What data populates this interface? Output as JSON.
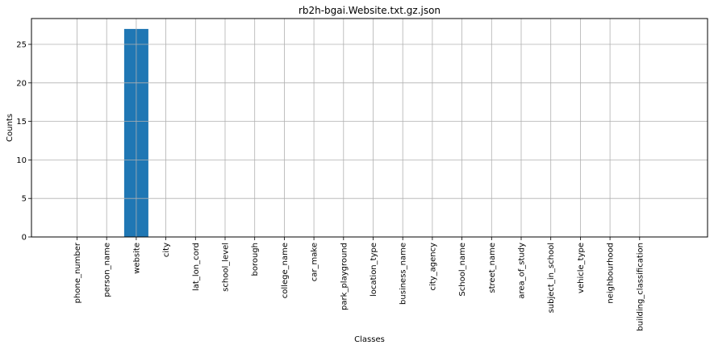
{
  "chart_data": {
    "type": "bar",
    "title": "rb2h-bgai.Website.txt.gz.json",
    "xlabel": "Classes",
    "ylabel": "Counts",
    "ylim": [
      0,
      28.35
    ],
    "yticks": [
      0,
      5,
      10,
      15,
      20,
      25
    ],
    "grid": true,
    "bar_color": "#1f77b4",
    "categories": [
      "phone_number",
      "person_name",
      "website",
      "city",
      "lat_lon_cord",
      "school_level",
      "borough",
      "college_name",
      "car_make",
      "park_playground",
      "location_type",
      "business_name",
      "city_agency",
      "School_name",
      "street_name",
      "area_of_study",
      "subject_in_school",
      "vehicle_type",
      "neighbourhood",
      "building_classification"
    ],
    "values": [
      0,
      0,
      27,
      0,
      0,
      0,
      0,
      0,
      0,
      0,
      0,
      0,
      0,
      0,
      0,
      0,
      0,
      0,
      0,
      0
    ]
  }
}
